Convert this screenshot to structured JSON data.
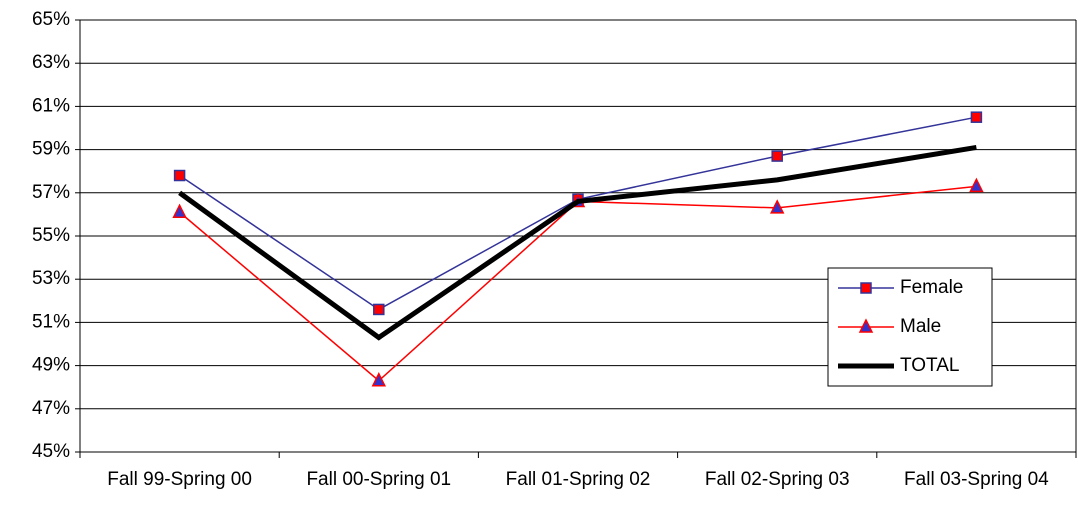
{
  "chart_data": {
    "type": "line",
    "categories": [
      "Fall 99-Spring 00",
      "Fall 00-Spring 01",
      "Fall 01-Spring 02",
      "Fall 02-Spring 03",
      "Fall 03-Spring 04"
    ],
    "series": [
      {
        "name": "Female",
        "color": "#333399",
        "marker": "square",
        "marker_color": "#ff0000",
        "values": [
          57.8,
          51.6,
          56.7,
          58.7,
          60.5
        ]
      },
      {
        "name": "Male",
        "color": "#ff0000",
        "marker": "triangle",
        "marker_color": "#3333cc",
        "values": [
          56.1,
          48.3,
          56.6,
          56.3,
          57.3
        ]
      },
      {
        "name": "TOTAL",
        "color": "#000000",
        "values": [
          57.0,
          50.3,
          56.6,
          57.6,
          59.1
        ]
      }
    ],
    "ylim": [
      45,
      65
    ],
    "yticks": [
      {
        "value": 45,
        "label": "45%"
      },
      {
        "value": 47,
        "label": "47%"
      },
      {
        "value": 49,
        "label": "49%"
      },
      {
        "value": 51,
        "label": "51%"
      },
      {
        "value": 53,
        "label": "53%"
      },
      {
        "value": 55,
        "label": "55%"
      },
      {
        "value": 57,
        "label": "57%"
      },
      {
        "value": 59,
        "label": "59%"
      },
      {
        "value": 61,
        "label": "61%"
      },
      {
        "value": 63,
        "label": "63%"
      },
      {
        "value": 65,
        "label": "65%"
      }
    ],
    "grid": true,
    "legend": "lower right"
  }
}
